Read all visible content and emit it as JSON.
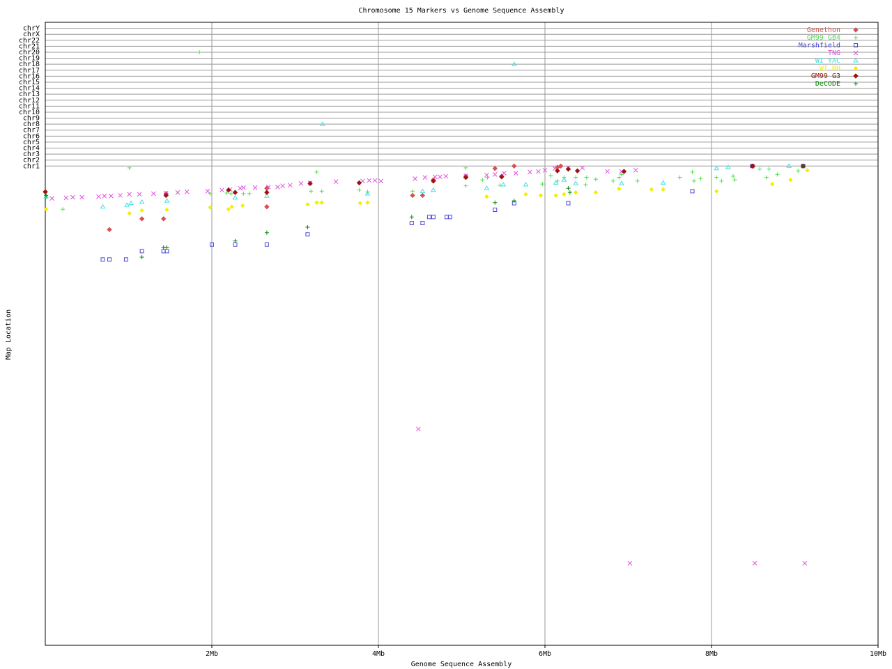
{
  "chart_data": {
    "type": "scatter",
    "title": "Chromosome 15 Markers vs Genome Sequence Assembly",
    "x_label": "Genome Sequence Assembly",
    "y_label": "Map Location",
    "xlim": [
      0,
      10
    ],
    "xticks": [
      {
        "value": 2,
        "label": "2Mb"
      },
      {
        "value": 4,
        "label": "4Mb"
      },
      {
        "value": 6,
        "label": "6Mb"
      },
      {
        "value": 8,
        "label": "8Mb"
      },
      {
        "value": 10,
        "label": "10Mb"
      }
    ],
    "ylim": [
      104,
      0
    ],
    "yticks": [
      {
        "value": 1,
        "label": "chrY"
      },
      {
        "value": 2,
        "label": "chrX"
      },
      {
        "value": 3,
        "label": "chr22"
      },
      {
        "value": 4,
        "label": "chr21"
      },
      {
        "value": 5,
        "label": "chr20"
      },
      {
        "value": 6,
        "label": "chr19"
      },
      {
        "value": 7,
        "label": "chr18"
      },
      {
        "value": 8,
        "label": "chr17"
      },
      {
        "value": 9,
        "label": "chr16"
      },
      {
        "value": 10,
        "label": "chr15"
      },
      {
        "value": 11,
        "label": "chr14"
      },
      {
        "value": 12,
        "label": "chr13"
      },
      {
        "value": 13,
        "label": "chr12"
      },
      {
        "value": 14,
        "label": "chr11"
      },
      {
        "value": 15,
        "label": "chr10"
      },
      {
        "value": 16,
        "label": "chr9"
      },
      {
        "value": 17,
        "label": "chr8"
      },
      {
        "value": 18,
        "label": "chr7"
      },
      {
        "value": 19,
        "label": "chr6"
      },
      {
        "value": 20,
        "label": "chr5"
      },
      {
        "value": 21,
        "label": "chr4"
      },
      {
        "value": 22,
        "label": "chr3"
      },
      {
        "value": 23,
        "label": "chr2"
      },
      {
        "value": 24,
        "label": "chr1"
      }
    ],
    "grid": true,
    "legend": "upper right",
    "series": [
      {
        "name": "Genethon",
        "color": "#d85050",
        "marker": "diamond",
        "x": [
          0.0,
          0.77,
          1.16,
          1.42,
          1.45,
          2.66,
          2.66,
          4.41,
          4.53,
          4.66,
          5.05,
          5.4,
          5.48,
          5.63,
          6.15,
          6.19,
          8.5
        ],
        "values": [
          28.3,
          34.6,
          32.8,
          32.8,
          28.6,
          30.8,
          27.7,
          28.9,
          28.9,
          26.3,
          25.7,
          24.4,
          25.7,
          24.0,
          24.2,
          24.0,
          24.0
        ]
      },
      {
        "name": "GM99 GB4",
        "color": "#50e050",
        "marker": "plus",
        "x": [
          0.01,
          0.21,
          1.01,
          1.85,
          1.98,
          2.18,
          2.23,
          2.38,
          2.45,
          3.19,
          3.26,
          3.32,
          3.77,
          3.87,
          4.41,
          5.05,
          5.05,
          5.25,
          5.31,
          5.46,
          5.97,
          6.07,
          6.15,
          6.23,
          6.37,
          6.49,
          6.5,
          6.61,
          6.82,
          6.89,
          6.92,
          7.11,
          7.62,
          7.77,
          7.79,
          7.87,
          8.06,
          8.12,
          8.26,
          8.28,
          8.58,
          8.69,
          8.66,
          8.79,
          9.04
        ],
        "values": [
          29.2,
          31.2,
          24.3,
          5.0,
          28.6,
          28.5,
          28.6,
          28.6,
          28.6,
          28.2,
          25.0,
          28.2,
          28.0,
          28.3,
          28.2,
          24.3,
          27.3,
          26.3,
          25.9,
          27.2,
          27.0,
          25.6,
          26.5,
          25.9,
          25.9,
          27.1,
          25.9,
          26.2,
          26.5,
          25.9,
          25.4,
          26.5,
          25.9,
          25.0,
          26.5,
          26.1,
          25.9,
          26.5,
          25.7,
          26.3,
          24.5,
          24.5,
          25.9,
          25.4,
          24.8
        ]
      },
      {
        "name": "Marshfield",
        "color": "#4848d8",
        "marker": "square",
        "x": [
          0.69,
          0.77,
          0.97,
          1.16,
          1.42,
          1.46,
          2.0,
          2.28,
          2.66,
          3.15,
          4.4,
          4.53,
          4.61,
          4.66,
          4.82,
          4.86,
          5.4,
          5.63,
          6.28,
          7.77,
          8.49,
          9.1
        ],
        "values": [
          39.6,
          39.6,
          39.6,
          38.2,
          38.2,
          38.2,
          37.1,
          37.1,
          37.1,
          35.4,
          33.5,
          33.5,
          32.5,
          32.5,
          32.5,
          32.5,
          31.3,
          30.2,
          30.2,
          28.2,
          24.0,
          24.0
        ]
      },
      {
        "name": "TNG",
        "color": "#e050e0",
        "marker": "x",
        "x": [
          0.08,
          0.25,
          0.33,
          0.44,
          0.64,
          0.71,
          0.79,
          0.9,
          1.01,
          1.13,
          1.3,
          1.45,
          1.59,
          1.7,
          1.95,
          2.12,
          2.22,
          2.34,
          2.38,
          2.52,
          2.68,
          2.79,
          2.85,
          2.94,
          3.07,
          3.18,
          3.49,
          3.81,
          3.89,
          3.96,
          4.03,
          4.44,
          4.56,
          4.68,
          4.74,
          4.81,
          5.05,
          5.3,
          5.4,
          5.51,
          5.65,
          5.82,
          5.92,
          6.0,
          6.12,
          6.28,
          6.45,
          6.75,
          6.92,
          7.09,
          4.48,
          7.02,
          8.52,
          9.12
        ],
        "values": [
          29.4,
          29.3,
          29.2,
          29.2,
          29.1,
          29.0,
          29.0,
          28.9,
          28.7,
          28.7,
          28.6,
          28.5,
          28.4,
          28.3,
          28.2,
          28.0,
          27.9,
          27.7,
          27.6,
          27.6,
          27.5,
          27.5,
          27.3,
          27.2,
          26.9,
          26.8,
          26.6,
          26.5,
          26.4,
          26.4,
          26.5,
          26.1,
          25.9,
          25.8,
          25.8,
          25.7,
          25.6,
          25.5,
          25.4,
          25.2,
          25.2,
          25.0,
          24.9,
          24.7,
          24.4,
          24.3,
          24.3,
          24.9,
          24.9,
          24.7,
          67.9,
          90.3,
          90.3,
          90.3
        ]
      },
      {
        "name": "WI YAC",
        "color": "#40e0e0",
        "marker": "triangle",
        "x": [
          0.01,
          0.69,
          0.98,
          1.03,
          1.16,
          1.46,
          2.28,
          2.66,
          3.33,
          3.87,
          4.53,
          4.66,
          5.3,
          5.5,
          5.63,
          5.77,
          6.13,
          6.23,
          6.37,
          6.92,
          7.42,
          8.06,
          8.2,
          8.93
        ],
        "values": [
          29.1,
          30.8,
          30.5,
          30.2,
          30.0,
          29.8,
          29.3,
          29.0,
          17.0,
          28.6,
          28.2,
          28.0,
          27.7,
          27.1,
          7.0,
          27.1,
          26.8,
          26.3,
          26.9,
          26.9,
          26.8,
          24.4,
          24.2,
          24.0
        ]
      },
      {
        "name": "WI RH",
        "color": "#f0f000",
        "marker": "dot",
        "x": [
          0.01,
          1.01,
          1.16,
          1.46,
          1.98,
          2.2,
          2.24,
          2.37,
          3.15,
          3.26,
          3.32,
          3.78,
          3.87,
          5.3,
          5.77,
          5.95,
          6.13,
          6.23,
          6.37,
          6.61,
          6.89,
          7.28,
          7.42,
          8.06,
          8.73,
          8.95,
          9.15
        ],
        "values": [
          31.2,
          31.9,
          31.4,
          31.3,
          30.9,
          31.2,
          30.8,
          30.6,
          30.4,
          30.1,
          30.1,
          30.2,
          30.1,
          29.1,
          28.7,
          28.9,
          28.9,
          28.7,
          28.4,
          28.4,
          27.8,
          27.9,
          27.9,
          28.2,
          27.0,
          26.3,
          24.7
        ]
      },
      {
        "name": "GM99 G3",
        "color": "#a01010",
        "marker": "diamond",
        "x": [
          0.0,
          1.45,
          2.2,
          2.28,
          2.66,
          3.18,
          3.77,
          4.66,
          5.05,
          5.48,
          6.15,
          6.28,
          6.39,
          6.95,
          8.49,
          9.1
        ],
        "values": [
          28.3,
          28.9,
          28.0,
          28.4,
          28.4,
          26.9,
          26.8,
          26.5,
          25.9,
          25.8,
          24.8,
          24.5,
          24.8,
          24.9,
          24.0,
          24.0
        ]
      },
      {
        "name": "DeCODE",
        "color": "#008800",
        "marker": "plus",
        "x": [
          0.01,
          1.16,
          1.42,
          1.46,
          2.28,
          2.66,
          3.15,
          4.4,
          5.4,
          5.63,
          6.28,
          6.3,
          9.1
        ],
        "values": [
          28.9,
          39.2,
          37.6,
          37.6,
          36.5,
          35.1,
          34.2,
          32.5,
          30.1,
          29.8,
          27.7,
          28.4,
          24.0
        ]
      }
    ]
  }
}
